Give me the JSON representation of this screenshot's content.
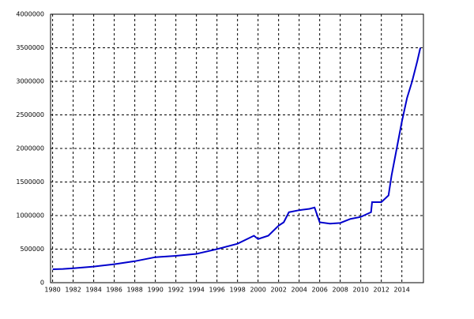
{
  "chart_data": {
    "type": "line",
    "x": [
      1980,
      1981,
      1982,
      1984,
      1986,
      1988,
      1990,
      1992,
      1994,
      1996,
      1998,
      1999.6,
      2000,
      2001,
      2002,
      2002.5,
      2003,
      2004,
      2005,
      2005.5,
      2006,
      2007,
      2008,
      2009,
      2010,
      2011,
      2011.1,
      2012,
      2012.7,
      2013,
      2013.5,
      2014,
      2014.5,
      2015,
      2015.5,
      2015.8
    ],
    "series": [
      {
        "color": "#0000cc",
        "values": [
          200000,
          205000,
          215000,
          240000,
          275000,
          320000,
          380000,
          400000,
          430000,
          500000,
          580000,
          700000,
          650000,
          700000,
          850000,
          900000,
          1050000,
          1080000,
          1100000,
          1120000,
          900000,
          880000,
          890000,
          950000,
          980000,
          1050000,
          1200000,
          1200000,
          1300000,
          1600000,
          2000000,
          2400000,
          2750000,
          3000000,
          3300000,
          3500000
        ]
      }
    ],
    "xlim": [
      1979.8,
      2016.1
    ],
    "ylim": [
      0,
      4000000
    ],
    "xticks": [
      1980,
      1982,
      1984,
      1986,
      1988,
      1990,
      1992,
      1994,
      1996,
      1998,
      2000,
      2002,
      2004,
      2006,
      2008,
      2010,
      2012,
      2014
    ],
    "yticks": [
      0,
      500000,
      1000000,
      1500000,
      2000000,
      2500000,
      3000000,
      3500000,
      4000000
    ],
    "grid": true
  }
}
